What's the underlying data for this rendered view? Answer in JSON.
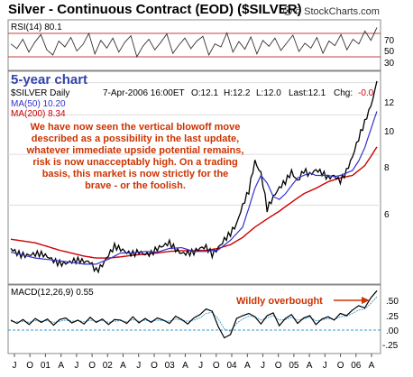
{
  "chart_data": {
    "type": "line",
    "title": "Silver - Continuous Contract (EOD) ($SILVER)",
    "credit": "© StockCharts.com",
    "subtitle": "5-year chart",
    "symbol_label": "$SILVER Daily",
    "quote": {
      "date": "7-Apr-2006 16:00ET",
      "open": "O:12.1",
      "high": "H:12.2",
      "low": "L:12.0",
      "last": "Last:12.1",
      "chg_label": "Chg:",
      "chg_value": "-0.0"
    },
    "legend": [
      {
        "name": "MA(50) 10.20",
        "color": "#3333cc"
      },
      {
        "name": "MA(200) 8.34",
        "color": "#cc0000"
      }
    ],
    "annotation_text": [
      "We have now seen the vertical blowoff move",
      "described as a possibility in the last update,",
      "whatever immediate upside potential remains,",
      "risk is now unacceptably high. On a trading",
      "basis, this market is now strictly for the",
      "brave - or the foolish."
    ],
    "macd_annotation": "Wildly overbought",
    "x_tick_labels": [
      "J",
      "O",
      "01",
      "A",
      "J",
      "O",
      "02",
      "A",
      "J",
      "O",
      "03",
      "A",
      "J",
      "O",
      "04",
      "A",
      "J",
      "O",
      "05",
      "A",
      "J",
      "O",
      "06",
      "A"
    ],
    "series": [
      {
        "name": "$SILVER Daily",
        "color": "#000000",
        "points": [
          [
            0,
            4.7
          ],
          [
            2,
            4.6
          ],
          [
            4,
            4.5
          ],
          [
            6,
            4.45
          ],
          [
            8,
            4.4
          ],
          [
            10,
            4.35
          ],
          [
            12,
            4.3
          ],
          [
            13,
            4.35
          ],
          [
            14,
            4.2
          ],
          [
            15,
            4.35
          ],
          [
            16,
            4.55
          ],
          [
            17,
            4.7
          ],
          [
            18,
            4.6
          ],
          [
            19,
            4.55
          ],
          [
            20,
            4.6
          ],
          [
            21,
            4.7
          ],
          [
            22,
            4.6
          ],
          [
            23,
            4.55
          ],
          [
            24,
            4.62
          ],
          [
            25,
            4.7
          ],
          [
            26,
            4.85
          ],
          [
            27,
            4.75
          ],
          [
            28,
            4.65
          ],
          [
            29,
            4.6
          ],
          [
            30,
            4.55
          ],
          [
            31,
            4.62
          ],
          [
            32,
            4.7
          ],
          [
            33,
            4.58
          ],
          [
            34,
            4.8
          ],
          [
            35,
            5.0
          ],
          [
            36,
            5.1
          ],
          [
            37,
            5.3
          ],
          [
            38,
            5.9
          ],
          [
            39,
            6.5
          ],
          [
            40,
            7.8
          ],
          [
            41,
            7.3
          ],
          [
            42,
            5.9
          ],
          [
            43,
            6.2
          ],
          [
            44,
            6.5
          ],
          [
            45,
            6.8
          ],
          [
            46,
            7.3
          ],
          [
            47,
            7.0
          ],
          [
            48,
            7.4
          ],
          [
            49,
            7.1
          ],
          [
            50,
            7.2
          ],
          [
            51,
            7.1
          ],
          [
            52,
            7.0
          ],
          [
            53,
            7.2
          ],
          [
            54,
            7.0
          ],
          [
            55,
            7.3
          ],
          [
            56,
            7.8
          ],
          [
            57,
            8.6
          ],
          [
            58,
            9.5
          ],
          [
            59,
            10.6
          ],
          [
            60,
            12.1
          ]
        ]
      },
      {
        "name": "MA(50) 10.20",
        "color": "#3333cc",
        "points": [
          [
            0,
            4.6
          ],
          [
            4,
            4.45
          ],
          [
            8,
            4.38
          ],
          [
            12,
            4.3
          ],
          [
            14,
            4.3
          ],
          [
            16,
            4.42
          ],
          [
            18,
            4.58
          ],
          [
            20,
            4.58
          ],
          [
            22,
            4.62
          ],
          [
            24,
            4.6
          ],
          [
            26,
            4.7
          ],
          [
            28,
            4.72
          ],
          [
            30,
            4.62
          ],
          [
            32,
            4.62
          ],
          [
            34,
            4.66
          ],
          [
            36,
            4.92
          ],
          [
            38,
            5.3
          ],
          [
            39,
            5.9
          ],
          [
            40,
            6.6
          ],
          [
            41,
            7.1
          ],
          [
            42,
            6.8
          ],
          [
            43,
            6.3
          ],
          [
            44,
            6.2
          ],
          [
            45,
            6.4
          ],
          [
            46,
            6.7
          ],
          [
            47,
            7.0
          ],
          [
            48,
            7.1
          ],
          [
            49,
            7.2
          ],
          [
            50,
            7.1
          ],
          [
            51,
            7.1
          ],
          [
            52,
            7.1
          ],
          [
            53,
            7.05
          ],
          [
            54,
            7.1
          ],
          [
            55,
            7.2
          ],
          [
            56,
            7.3
          ],
          [
            57,
            7.7
          ],
          [
            58,
            8.3
          ],
          [
            59,
            9.2
          ],
          [
            60,
            10.2
          ]
        ]
      },
      {
        "name": "MA(200) 8.34",
        "color": "#cc0000",
        "points": [
          [
            0,
            4.95
          ],
          [
            4,
            4.85
          ],
          [
            8,
            4.65
          ],
          [
            12,
            4.5
          ],
          [
            14,
            4.45
          ],
          [
            16,
            4.45
          ],
          [
            18,
            4.48
          ],
          [
            20,
            4.52
          ],
          [
            22,
            4.55
          ],
          [
            24,
            4.58
          ],
          [
            26,
            4.62
          ],
          [
            28,
            4.64
          ],
          [
            30,
            4.64
          ],
          [
            32,
            4.65
          ],
          [
            34,
            4.7
          ],
          [
            36,
            4.8
          ],
          [
            38,
            5.0
          ],
          [
            40,
            5.3
          ],
          [
            42,
            5.55
          ],
          [
            44,
            5.8
          ],
          [
            46,
            6.1
          ],
          [
            48,
            6.4
          ],
          [
            50,
            6.6
          ],
          [
            52,
            6.85
          ],
          [
            54,
            7.0
          ],
          [
            56,
            7.1
          ],
          [
            58,
            7.5
          ],
          [
            59,
            7.9
          ],
          [
            60,
            8.34
          ]
        ]
      }
    ],
    "y_scale": "log",
    "y_ticks": [
      6,
      8,
      10,
      12
    ],
    "rsi": {
      "label": "RSI(14) 80.1",
      "ticks": [
        70,
        50,
        30
      ],
      "levels": [
        70,
        30
      ],
      "values": [
        52,
        44,
        60,
        38,
        55,
        68,
        42,
        33,
        57,
        47,
        63,
        40,
        51,
        70,
        35,
        58,
        45,
        62,
        38,
        55,
        66,
        30,
        48,
        60,
        42,
        55,
        69,
        36,
        50,
        62,
        44,
        57,
        65,
        33,
        52,
        47,
        71,
        38,
        56,
        43,
        64,
        35,
        58,
        48,
        62,
        41,
        54,
        67,
        39,
        53,
        45,
        63,
        36,
        57,
        49,
        68,
        42,
        60,
        52,
        74,
        58,
        80
      ]
    },
    "macd": {
      "label": "MACD(12,26,9) 0.55",
      "ticks": [
        ".50",
        ".25",
        ".00",
        "-.25"
      ],
      "tick_values": [
        0.5,
        0.25,
        0.0,
        -0.25
      ],
      "values": [
        0.02,
        -0.04,
        0.03,
        -0.06,
        0.05,
        -0.02,
        0.04,
        -0.07,
        0.03,
        0.06,
        -0.03,
        0.02,
        -0.05,
        0.07,
        -0.02,
        0.04,
        -0.06,
        0.03,
        0.02,
        -0.04,
        0.08,
        -0.03,
        0.05,
        -0.02,
        0.06,
        0.02,
        -0.04,
        0.09,
        0.03,
        -0.05,
        0.06,
        0.12,
        0.22,
        0.18,
        -0.1,
        -0.3,
        -0.24,
        0.05,
        0.1,
        0.14,
        0.08,
        -0.05,
        0.1,
        0.15,
        -0.08,
        0.05,
        0.12,
        -0.04,
        0.06,
        0.1,
        -0.06,
        0.04,
        0.08,
        0.02,
        0.14,
        0.1,
        0.2,
        0.28,
        0.24,
        0.42,
        0.55
      ],
      "signal": [
        0.0,
        -0.01,
        0.0,
        -0.02,
        0.01,
        0.0,
        0.01,
        -0.02,
        0.0,
        0.02,
        0.0,
        0.01,
        -0.01,
        0.02,
        0.0,
        0.01,
        -0.02,
        0.0,
        0.01,
        -0.01,
        0.03,
        0.0,
        0.02,
        0.0,
        0.02,
        0.01,
        0.0,
        0.04,
        0.02,
        0.0,
        0.02,
        0.06,
        0.14,
        0.16,
        0.04,
        -0.14,
        -0.18,
        -0.04,
        0.04,
        0.09,
        0.08,
        0.02,
        0.06,
        0.1,
        0.02,
        0.03,
        0.07,
        0.02,
        0.04,
        0.07,
        0.01,
        0.02,
        0.05,
        0.03,
        0.08,
        0.09,
        0.14,
        0.2,
        0.22,
        0.32,
        0.44
      ]
    }
  }
}
